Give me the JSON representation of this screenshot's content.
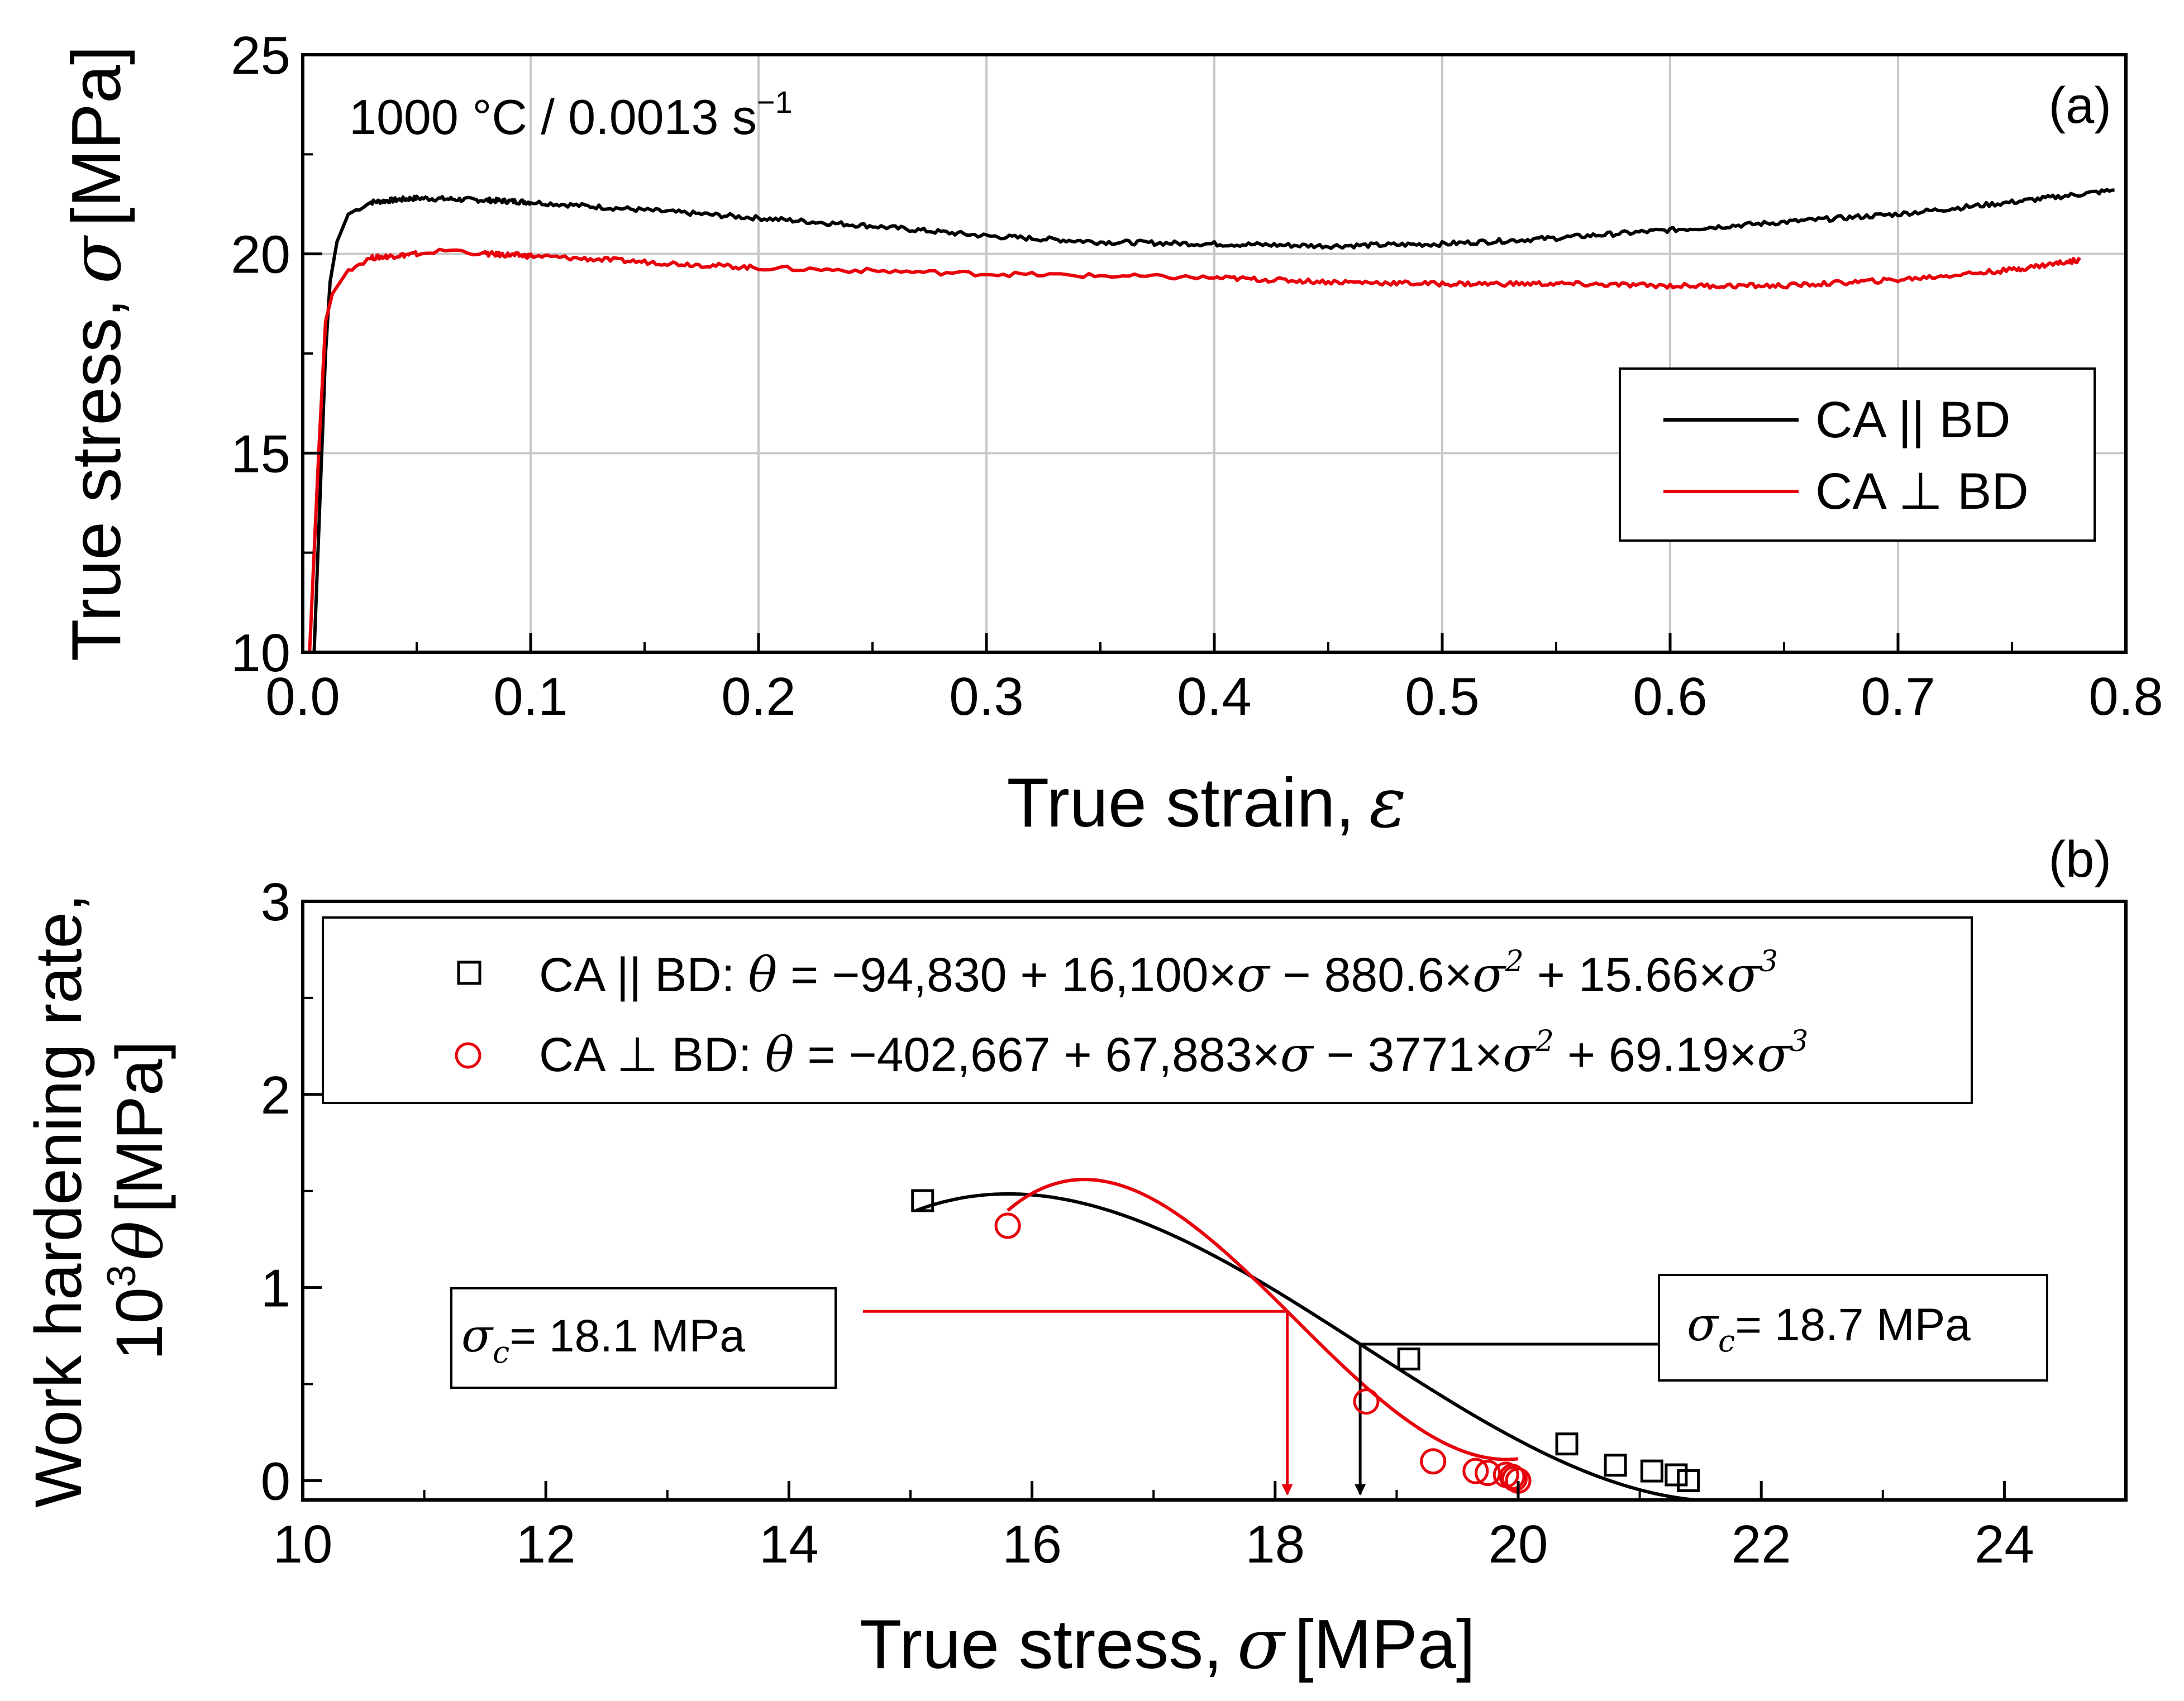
{
  "chart_data": [
    {
      "type": "line",
      "panel": "(a)",
      "annotation": {
        "text": "1000 °C / 0.0013 s",
        "sup": "−1"
      },
      "xlabel": {
        "text": "True strain,",
        "sym": "ε"
      },
      "ylabel": {
        "text": "True stress,",
        "sym": "σ",
        "unit": "[MPa]"
      },
      "xlim": [
        0.0,
        0.8
      ],
      "ylim": [
        10,
        25
      ],
      "xticks": [
        "0.0",
        "0.1",
        "0.2",
        "0.3",
        "0.4",
        "0.5",
        "0.6",
        "0.7",
        "0.8"
      ],
      "yticks": [
        "10",
        "15",
        "20",
        "25"
      ],
      "grid": true,
      "legend_position": "center-right",
      "series": [
        {
          "name": "CA || BD",
          "color": "#000000",
          "x": [
            0.005,
            0.008,
            0.01,
            0.012,
            0.015,
            0.02,
            0.03,
            0.05,
            0.08,
            0.1,
            0.15,
            0.2,
            0.25,
            0.3,
            0.35,
            0.4,
            0.45,
            0.5,
            0.55,
            0.6,
            0.65,
            0.7,
            0.75,
            0.795
          ],
          "y": [
            10.0,
            14.5,
            17.5,
            19.3,
            20.3,
            21.0,
            21.3,
            21.4,
            21.35,
            21.3,
            21.1,
            20.9,
            20.7,
            20.45,
            20.3,
            20.25,
            20.2,
            20.25,
            20.4,
            20.6,
            20.8,
            21.0,
            21.3,
            21.6
          ]
        },
        {
          "name": "CA ⊥ BD",
          "color": "#e8000b",
          "x": [
            0.003,
            0.005,
            0.007,
            0.01,
            0.013,
            0.02,
            0.03,
            0.05,
            0.065,
            0.08,
            0.1,
            0.15,
            0.2,
            0.3,
            0.4,
            0.45,
            0.5,
            0.55,
            0.6,
            0.65,
            0.7,
            0.75,
            0.78
          ],
          "y": [
            10.0,
            12.5,
            15.0,
            18.3,
            19.0,
            19.6,
            19.9,
            20.0,
            20.1,
            20.0,
            19.95,
            19.8,
            19.65,
            19.5,
            19.4,
            19.3,
            19.25,
            19.25,
            19.2,
            19.2,
            19.35,
            19.6,
            19.85
          ]
        }
      ]
    },
    {
      "type": "scatter",
      "panel": "(b)",
      "xlabel": {
        "text": "True stress,",
        "sym": "σ",
        "unit": "[MPa]"
      },
      "ylabel": {
        "line1": "Work hardening rate,",
        "pre": "10",
        "sup": "3",
        "sym": "θ",
        "unit": "[MPa]"
      },
      "xlim": [
        10,
        25
      ],
      "ylim": [
        -0.1,
        3
      ],
      "xticks": [
        "10",
        "12",
        "14",
        "16",
        "18",
        "20",
        "22",
        "24"
      ],
      "yticks": [
        "0",
        "1",
        "2",
        "3"
      ],
      "grid": false,
      "legend_position": "top",
      "series": [
        {
          "name": "CA || BD",
          "color": "#000000",
          "marker": "square",
          "equation": {
            "lhs": "θ",
            "a": "−94,830",
            "b": "16,100",
            "c": "880.6",
            "d": "15.66"
          },
          "fit": [
            -94830,
            16100,
            -880.6,
            15.66
          ],
          "fit_range": [
            15.05,
            21.45
          ],
          "points": {
            "x": [
              15.1,
              19.1,
              20.4,
              20.8,
              21.1,
              21.3,
              21.4
            ],
            "y": [
              1.45,
              0.63,
              0.19,
              0.08,
              0.05,
              0.03,
              0.0
            ]
          }
        },
        {
          "name": "CA ⊥ BD",
          "color": "#e8000b",
          "marker": "circle",
          "equation": {
            "lhs": "θ",
            "a": "−402,667",
            "b": "67,883",
            "c": "3771",
            "d": "69.19"
          },
          "fit": [
            -402667,
            67883,
            -3771,
            69.19
          ],
          "fit_range": [
            15.8,
            20.0
          ],
          "points": {
            "x": [
              15.8,
              18.75,
              19.3,
              19.65,
              19.75,
              19.9,
              19.95,
              19.97,
              20.0
            ],
            "y": [
              1.32,
              0.41,
              0.1,
              0.05,
              0.04,
              0.03,
              0.02,
              0.01,
              0.0
            ]
          }
        }
      ],
      "annotations": [
        {
          "id": "red",
          "sym": "σ",
          "sub": "c",
          "text": "= 18.1 MPa",
          "value": 18.1,
          "color": "#e8000b"
        },
        {
          "id": "black",
          "sym": "σ",
          "sub": "c",
          "text": "= 18.7 MPa",
          "value": 18.7,
          "color": "#000000"
        }
      ]
    }
  ]
}
